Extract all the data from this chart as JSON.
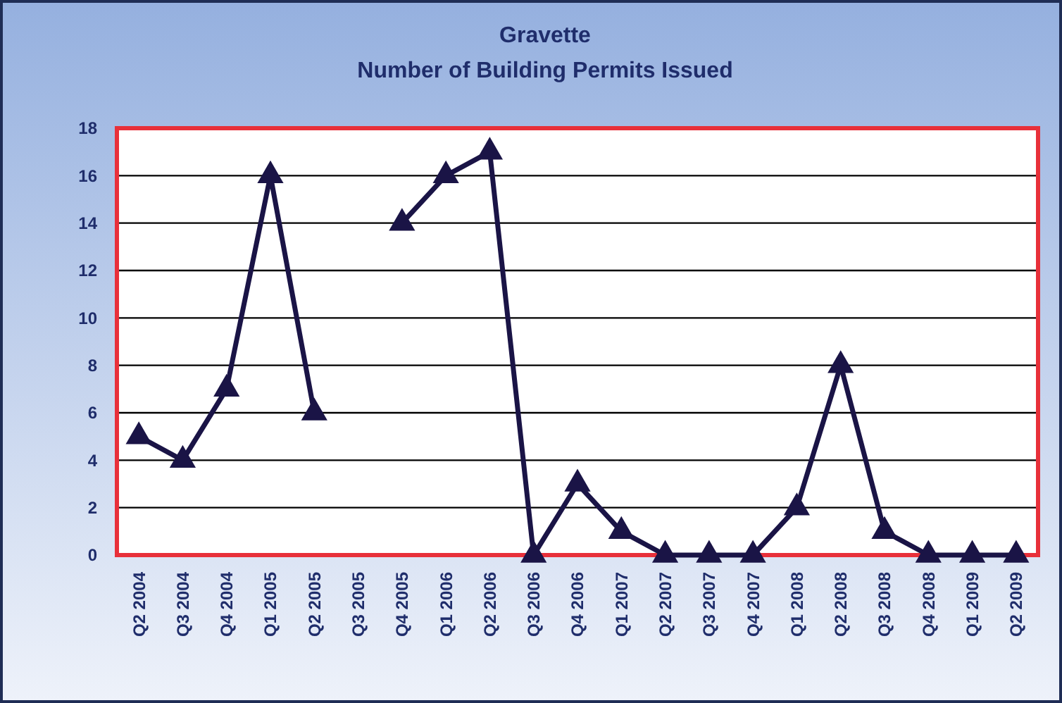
{
  "chart_data": {
    "type": "line",
    "title": "Gravette",
    "subtitle": "Number of Building Permits Issued",
    "categories": [
      "Q2 2004",
      "Q3 2004",
      "Q4 2004",
      "Q1 2005",
      "Q2 2005",
      "Q3 2005",
      "Q4 2005",
      "Q1 2006",
      "Q2 2006",
      "Q3 2006",
      "Q4 2006",
      "Q1 2007",
      "Q2 2007",
      "Q3 2007",
      "Q4 2007",
      "Q1 2008",
      "Q2 2008",
      "Q3 2008",
      "Q4 2008",
      "Q1 2009",
      "Q2 2009"
    ],
    "series": [
      {
        "color": "#1a1446",
        "values": [
          5,
          4,
          7,
          16,
          6,
          null,
          14,
          16,
          17,
          0,
          3,
          1,
          0,
          0,
          0,
          2,
          8,
          1,
          0,
          0,
          0
        ]
      }
    ],
    "ylim": [
      0,
      18
    ],
    "yticks": [
      0,
      2,
      4,
      6,
      8,
      10,
      12,
      14,
      16,
      18
    ],
    "grid": "y",
    "marker": "triangle",
    "line_style": "solid"
  }
}
